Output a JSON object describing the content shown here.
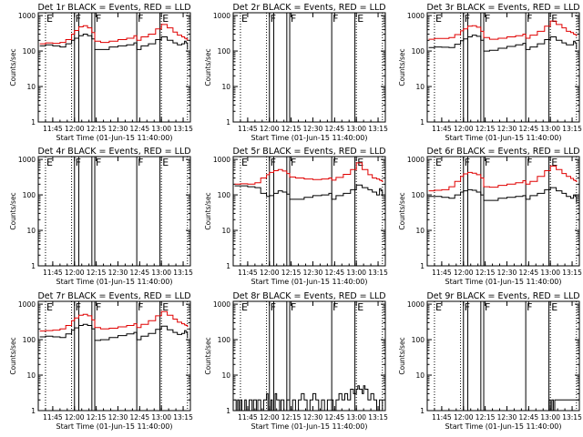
{
  "chart_data": {
    "type": "line",
    "scale": "log",
    "ylabel": "Counts/sec",
    "xlabel": "Start Time (01-Jun-15 11:40:00)",
    "xlim": [
      -5,
      100
    ],
    "ylim": [
      1,
      1200
    ],
    "x_ticks": [
      {
        "t": 5,
        "label": "11:45"
      },
      {
        "t": 20,
        "label": "12:00"
      },
      {
        "t": 35,
        "label": "12:15"
      },
      {
        "t": 50,
        "label": "12:30"
      },
      {
        "t": 65,
        "label": "12:45"
      },
      {
        "t": 80,
        "label": "13:00"
      },
      {
        "t": 95,
        "label": "13:15"
      }
    ],
    "y_ticks": [
      {
        "v": 1,
        "label": "1"
      },
      {
        "v": 10,
        "label": "10"
      },
      {
        "v": 100,
        "label": "100"
      },
      {
        "v": 1000,
        "label": "1000"
      }
    ],
    "flag_lines": [
      {
        "t": 0,
        "label": "E",
        "style": "dotted"
      },
      {
        "t": 18,
        "label": "",
        "style": "dotted"
      },
      {
        "t": 20,
        "label": "F",
        "style": "solid"
      },
      {
        "t": 23,
        "label": "",
        "style": "solid"
      },
      {
        "t": 32,
        "label": "",
        "style": "solid"
      },
      {
        "t": 34,
        "label": "F",
        "style": "solid"
      },
      {
        "t": 63,
        "label": "F",
        "style": "solid"
      },
      {
        "t": 79,
        "label": "",
        "style": "solid"
      },
      {
        "t": 80,
        "label": "E",
        "style": "dotted"
      },
      {
        "t": 98,
        "label": "",
        "style": "dotted"
      }
    ],
    "panels": [
      {
        "title": "Det 1r  BLACK = Events, RED = LLD",
        "series": [
          {
            "name": "Events",
            "color": "#000000",
            "x": [
              -4,
              0,
              5,
              10,
              14,
              18,
              20,
              23,
              26,
              29,
              32,
              34,
              38,
              44,
              50,
              56,
              61,
              63,
              66,
              71,
              76,
              80,
              84,
              88,
              91,
              94,
              96,
              97,
              98
            ],
            "values": [
              140,
              150,
              140,
              130,
              160,
              200,
              230,
              270,
              300,
              270,
              220,
              110,
              110,
              130,
              140,
              150,
              170,
              110,
              140,
              160,
              210,
              250,
              200,
              170,
              150,
              160,
              190,
              170,
              110
            ]
          },
          {
            "name": "LLD",
            "color": "#e00000",
            "x": [
              -4,
              0,
              5,
              10,
              14,
              18,
              20,
              23,
              26,
              29,
              32,
              34,
              38,
              44,
              50,
              56,
              61,
              63,
              66,
              71,
              76,
              80,
              84,
              88,
              91,
              94,
              96,
              97,
              98
            ],
            "values": [
              160,
              170,
              165,
              175,
              210,
              300,
              380,
              480,
              520,
              450,
              330,
              190,
              175,
              190,
              210,
              230,
              270,
              200,
              250,
              300,
              420,
              560,
              450,
              340,
              280,
              250,
              230,
              220,
              200
            ]
          }
        ]
      },
      {
        "title": "Det 2r  BLACK = Events, RED = LLD",
        "series": []
      },
      {
        "title": "Det 3r  BLACK = Events, RED = LLD",
        "series": [
          {
            "name": "Events",
            "color": "#000000",
            "x": [
              -4,
              0,
              5,
              10,
              14,
              18,
              20,
              23,
              26,
              29,
              32,
              34,
              38,
              44,
              50,
              56,
              61,
              63,
              66,
              71,
              76,
              80,
              84,
              88,
              91,
              94,
              96,
              97,
              98
            ],
            "values": [
              125,
              130,
              128,
              125,
              155,
              195,
              220,
              250,
              280,
              260,
              200,
              100,
              105,
              120,
              135,
              150,
              165,
              110,
              130,
              160,
              210,
              250,
              200,
              170,
              150,
              150,
              190,
              170,
              115
            ]
          },
          {
            "name": "LLD",
            "color": "#e00000",
            "x": [
              -4,
              0,
              5,
              10,
              14,
              18,
              20,
              23,
              26,
              29,
              32,
              34,
              38,
              44,
              50,
              56,
              61,
              63,
              66,
              71,
              76,
              80,
              84,
              88,
              91,
              94,
              96,
              97,
              98
            ],
            "values": [
              215,
              225,
              225,
              240,
              290,
              370,
              420,
              500,
              520,
              470,
              360,
              240,
              215,
              230,
              250,
              270,
              300,
              230,
              280,
              360,
              500,
              700,
              560,
              450,
              360,
              330,
              300,
              290,
              260
            ]
          }
        ]
      },
      {
        "title": "Det 4r  BLACK = Events, RED = LLD",
        "series": []
      },
      {
        "title": "Det 5r  BLACK = Events, RED = LLD",
        "series": [
          {
            "name": "Events",
            "color": "#000000",
            "x": [
              -4,
              0,
              5,
              10,
              14,
              18,
              20,
              23,
              26,
              29,
              32,
              34,
              38,
              44,
              50,
              56,
              61,
              63,
              66,
              71,
              76,
              80,
              84,
              88,
              91,
              94,
              96,
              97,
              98
            ],
            "values": [
              180,
              180,
              170,
              160,
              110,
              90,
              95,
              110,
              130,
              120,
              105,
              75,
              75,
              85,
              95,
              100,
              110,
              75,
              95,
              110,
              140,
              190,
              160,
              140,
              120,
              100,
              150,
              130,
              90
            ]
          },
          {
            "name": "LLD",
            "color": "#e00000",
            "x": [
              -4,
              0,
              5,
              10,
              14,
              18,
              20,
              23,
              26,
              29,
              32,
              34,
              38,
              44,
              50,
              56,
              61,
              63,
              66,
              71,
              76,
              80,
              84,
              88,
              91,
              94,
              96,
              97,
              98
            ],
            "values": [
              200,
              205,
              200,
              220,
              300,
              370,
              430,
              480,
              520,
              470,
              400,
              320,
              300,
              280,
              270,
              280,
              300,
              260,
              310,
              380,
              520,
              800,
              520,
              370,
              300,
              280,
              260,
              250,
              230
            ]
          }
        ]
      },
      {
        "title": "Det 6r  BLACK = Events, RED = LLD",
        "series": [
          {
            "name": "Events",
            "color": "#000000",
            "x": [
              -4,
              0,
              5,
              10,
              14,
              18,
              20,
              23,
              26,
              29,
              32,
              34,
              38,
              44,
              50,
              56,
              61,
              63,
              66,
              71,
              76,
              80,
              84,
              88,
              91,
              94,
              96,
              97,
              98
            ],
            "values": [
              90,
              90,
              85,
              80,
              100,
              120,
              130,
              140,
              135,
              120,
              100,
              70,
              70,
              80,
              85,
              90,
              95,
              75,
              95,
              110,
              140,
              160,
              130,
              110,
              90,
              80,
              100,
              90,
              60
            ]
          },
          {
            "name": "LLD",
            "color": "#e00000",
            "x": [
              -4,
              0,
              5,
              10,
              14,
              18,
              20,
              23,
              26,
              29,
              32,
              34,
              38,
              44,
              50,
              56,
              61,
              63,
              66,
              71,
              76,
              80,
              84,
              88,
              91,
              94,
              96,
              97,
              98
            ],
            "values": [
              130,
              135,
              140,
              170,
              240,
              330,
              390,
              430,
              410,
              370,
              300,
              170,
              165,
              185,
              200,
              220,
              250,
              200,
              240,
              330,
              480,
              650,
              520,
              400,
              330,
              290,
              260,
              250,
              230
            ]
          }
        ]
      },
      {
        "title": "Det 7r  BLACK = Events, RED = LLD",
        "series": [
          {
            "name": "Events",
            "color": "#000000",
            "x": [
              -4,
              0,
              5,
              10,
              14,
              18,
              20,
              23,
              26,
              29,
              32,
              34,
              38,
              44,
              50,
              56,
              61,
              63,
              66,
              71,
              76,
              80,
              84,
              88,
              91,
              94,
              96,
              97,
              98
            ],
            "values": [
              120,
              125,
              120,
              115,
              145,
              185,
              215,
              250,
              270,
              250,
              200,
              95,
              100,
              115,
              130,
              145,
              160,
              100,
              125,
              150,
              195,
              240,
              190,
              160,
              140,
              150,
              180,
              160,
              110
            ]
          },
          {
            "name": "LLD",
            "color": "#e00000",
            "x": [
              -4,
              0,
              5,
              10,
              14,
              18,
              20,
              23,
              26,
              29,
              32,
              34,
              38,
              44,
              50,
              56,
              61,
              63,
              66,
              71,
              76,
              80,
              84,
              88,
              91,
              94,
              96,
              97,
              98
            ],
            "values": [
              175,
              180,
              185,
              200,
              250,
              340,
              410,
              490,
              520,
              470,
              360,
              220,
              200,
              210,
              230,
              250,
              280,
              220,
              270,
              340,
              470,
              620,
              490,
              380,
              310,
              280,
              260,
              250,
              230
            ]
          }
        ]
      },
      {
        "title": "Det 8r  BLACK = Events, RED = LLD",
        "series": [
          {
            "name": "Events",
            "color": "#000000",
            "x": [
              -4,
              -3,
              -2,
              -1,
              0,
              1,
              3,
              4,
              6,
              8,
              9,
              11,
              12,
              14,
              16,
              18,
              19,
              21,
              22,
              24,
              25,
              27,
              28,
              30,
              32,
              34,
              36,
              38,
              40,
              42,
              44,
              46,
              48,
              50,
              52,
              54,
              56,
              58,
              60,
              62,
              64,
              66,
              68,
              70,
              72,
              74,
              76,
              78,
              80,
              81,
              82,
              83,
              84,
              85,
              86,
              88,
              90,
              92,
              94,
              96,
              97,
              98
            ],
            "values": [
              2,
              1,
              2,
              1,
              2,
              1,
              2,
              1,
              2,
              1,
              2,
              1,
              2,
              1,
              2,
              3,
              1,
              2,
              1,
              3,
              2,
              1,
              2,
              1,
              2,
              1,
              2,
              1,
              2,
              3,
              2,
              1,
              2,
              3,
              2,
              1,
              2,
              1,
              2,
              2,
              1,
              2,
              3,
              2,
              3,
              2,
              4,
              3,
              4,
              5,
              4,
              4,
              3,
              5,
              4,
              2,
              3,
              2,
              1,
              2,
              2,
              1
            ]
          }
        ]
      },
      {
        "title": "Det 9r  BLACK = Events, RED = LLD",
        "series": [
          {
            "name": "Events",
            "color": "#000000",
            "x": [
              -4,
              78,
              79,
              80,
              81,
              82,
              83,
              100
            ],
            "values": [
              0,
              0,
              2,
              1,
              2,
              1,
              2,
              0
            ]
          }
        ]
      }
    ]
  }
}
